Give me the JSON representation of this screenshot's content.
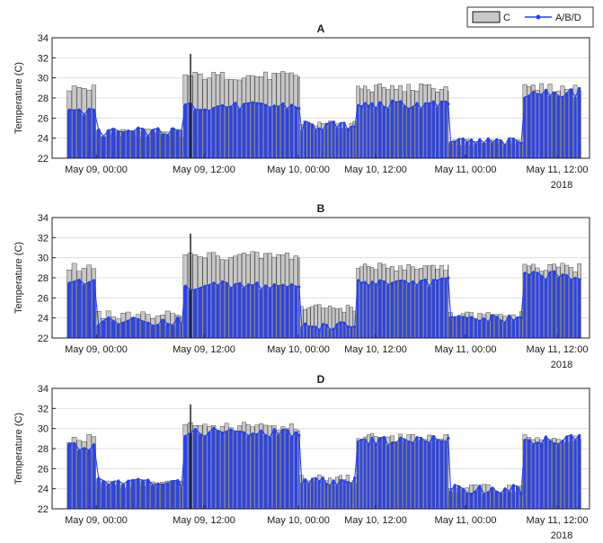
{
  "legend": {
    "entries": [
      {
        "label": "C",
        "symbol": "gray-bar",
        "color": "#c8c8c8"
      },
      {
        "label": "A/B/D",
        "symbol": "blue-line-dot",
        "color": "#1f3fff"
      }
    ]
  },
  "colors": {
    "c_bar": "#c8c8c8",
    "c_edge": "#111111",
    "series_bar": "#3246d2",
    "series_line": "#1f3fff",
    "axis": "#222222",
    "grid": "#d9d9d9"
  },
  "x_ticks": [
    "May 09, 00:00",
    "May 09, 12:00",
    "May 10, 00:00",
    "May 10, 12:00",
    "May 11, 00:00",
    "May 11, 12:00"
  ],
  "year_label": "2018",
  "chart_data": [
    {
      "type": "bar",
      "title": "A",
      "ylabel": "Temperature (C)",
      "ylim": [
        22,
        34
      ],
      "yticks": [
        22,
        24,
        26,
        28,
        30,
        32,
        34
      ],
      "xlim": [
        "2018-05-08 20:40",
        "2018-05-11 15:20"
      ],
      "grid": true,
      "legend_position": "top-right",
      "series": [
        {
          "name": "C",
          "type": "bar",
          "segments": [
            {
              "start": "2018-05-08 20:45",
              "end": "2018-05-09 00:00",
              "level": 29.0
            },
            {
              "start": "2018-05-09 00:00",
              "end": "2018-05-09 09:40",
              "level": 24.5
            },
            {
              "start": "2018-05-09 09:40",
              "end": "2018-05-10 00:15",
              "level": 30.2
            },
            {
              "start": "2018-05-10 00:15",
              "end": "2018-05-10 09:00",
              "level": 25.3
            },
            {
              "start": "2018-05-10 09:00",
              "end": "2018-05-10 21:45",
              "level": 29.0
            },
            {
              "start": "2018-05-10 21:45",
              "end": "2018-05-11 07:30",
              "level": 23.5
            },
            {
              "start": "2018-05-11 07:30",
              "end": "2018-05-11 15:10",
              "level": 29.0
            }
          ],
          "spike": {
            "x": "2018-05-09 10:30",
            "y": 32.4
          }
        },
        {
          "name": "A/B/D",
          "type": "line",
          "segments": [
            {
              "start": "2018-05-08 20:45",
              "end": "2018-05-09 00:00",
              "level": 26.8
            },
            {
              "start": "2018-05-09 00:00",
              "end": "2018-05-09 09:40",
              "level": 24.6
            },
            {
              "start": "2018-05-09 09:40",
              "end": "2018-05-10 00:15",
              "level": 27.2
            },
            {
              "start": "2018-05-10 00:15",
              "end": "2018-05-10 09:00",
              "level": 25.2
            },
            {
              "start": "2018-05-10 09:00",
              "end": "2018-05-10 21:45",
              "level": 27.3
            },
            {
              "start": "2018-05-10 21:45",
              "end": "2018-05-11 07:30",
              "level": 23.6
            },
            {
              "start": "2018-05-11 07:30",
              "end": "2018-05-11 15:10",
              "level": 28.5
            }
          ]
        }
      ]
    },
    {
      "type": "bar",
      "title": "B",
      "ylabel": "Temperature (C)",
      "ylim": [
        22,
        34
      ],
      "yticks": [
        22,
        24,
        26,
        28,
        30,
        32,
        34
      ],
      "xlim": [
        "2018-05-08 20:40",
        "2018-05-11 15:20"
      ],
      "grid": true,
      "series": [
        {
          "name": "C",
          "type": "bar",
          "segments": [
            {
              "start": "2018-05-08 20:45",
              "end": "2018-05-09 00:00",
              "level": 29.0
            },
            {
              "start": "2018-05-09 00:00",
              "end": "2018-05-09 09:40",
              "level": 24.3
            },
            {
              "start": "2018-05-09 09:40",
              "end": "2018-05-10 00:15",
              "level": 30.2
            },
            {
              "start": "2018-05-10 00:15",
              "end": "2018-05-10 09:00",
              "level": 25.0
            },
            {
              "start": "2018-05-10 09:00",
              "end": "2018-05-10 21:45",
              "level": 29.1
            },
            {
              "start": "2018-05-10 21:45",
              "end": "2018-05-11 07:30",
              "level": 24.2
            },
            {
              "start": "2018-05-11 07:30",
              "end": "2018-05-11 15:10",
              "level": 29.0
            }
          ],
          "spike": {
            "x": "2018-05-09 10:30",
            "y": 32.4
          }
        },
        {
          "name": "A/B/D",
          "type": "line",
          "segments": [
            {
              "start": "2018-05-08 20:45",
              "end": "2018-05-09 00:00",
              "level": 27.8
            },
            {
              "start": "2018-05-09 00:00",
              "end": "2018-05-09 09:40",
              "level": 23.7
            },
            {
              "start": "2018-05-09 09:40",
              "end": "2018-05-10 00:15",
              "level": 27.2
            },
            {
              "start": "2018-05-10 00:15",
              "end": "2018-05-10 09:00",
              "level": 23.2
            },
            {
              "start": "2018-05-10 09:00",
              "end": "2018-05-10 21:45",
              "level": 27.6
            },
            {
              "start": "2018-05-10 21:45",
              "end": "2018-05-11 07:30",
              "level": 23.9
            },
            {
              "start": "2018-05-11 07:30",
              "end": "2018-05-11 15:10",
              "level": 28.2
            }
          ]
        }
      ]
    },
    {
      "type": "bar",
      "title": "D",
      "ylabel": "Temperature (C)",
      "ylim": [
        22,
        34
      ],
      "yticks": [
        22,
        24,
        26,
        28,
        30,
        32,
        34
      ],
      "xlim": [
        "2018-05-08 20:40",
        "2018-05-11 15:20"
      ],
      "grid": true,
      "series": [
        {
          "name": "C",
          "type": "bar",
          "segments": [
            {
              "start": "2018-05-08 20:45",
              "end": "2018-05-09 00:00",
              "level": 29.0
            },
            {
              "start": "2018-05-09 00:00",
              "end": "2018-05-09 09:40",
              "level": 24.5
            },
            {
              "start": "2018-05-09 09:40",
              "end": "2018-05-10 00:15",
              "level": 30.2
            },
            {
              "start": "2018-05-10 00:15",
              "end": "2018-05-10 09:00",
              "level": 25.0
            },
            {
              "start": "2018-05-10 09:00",
              "end": "2018-05-10 21:45",
              "level": 29.1
            },
            {
              "start": "2018-05-10 21:45",
              "end": "2018-05-11 07:30",
              "level": 24.0
            },
            {
              "start": "2018-05-11 07:30",
              "end": "2018-05-11 15:10",
              "level": 29.0
            }
          ],
          "spike": {
            "x": "2018-05-09 10:30",
            "y": 32.4
          }
        },
        {
          "name": "A/B/D",
          "type": "line",
          "segments": [
            {
              "start": "2018-05-08 20:45",
              "end": "2018-05-09 00:00",
              "level": 28.2
            },
            {
              "start": "2018-05-09 00:00",
              "end": "2018-05-09 09:40",
              "level": 24.6
            },
            {
              "start": "2018-05-09 09:40",
              "end": "2018-05-10 00:15",
              "level": 29.6
            },
            {
              "start": "2018-05-10 00:15",
              "end": "2018-05-10 09:00",
              "level": 24.8
            },
            {
              "start": "2018-05-10 09:00",
              "end": "2018-05-10 21:45",
              "level": 28.8
            },
            {
              "start": "2018-05-10 21:45",
              "end": "2018-05-11 07:30",
              "level": 23.9
            },
            {
              "start": "2018-05-11 07:30",
              "end": "2018-05-11 15:10",
              "level": 28.9
            }
          ]
        }
      ]
    }
  ]
}
